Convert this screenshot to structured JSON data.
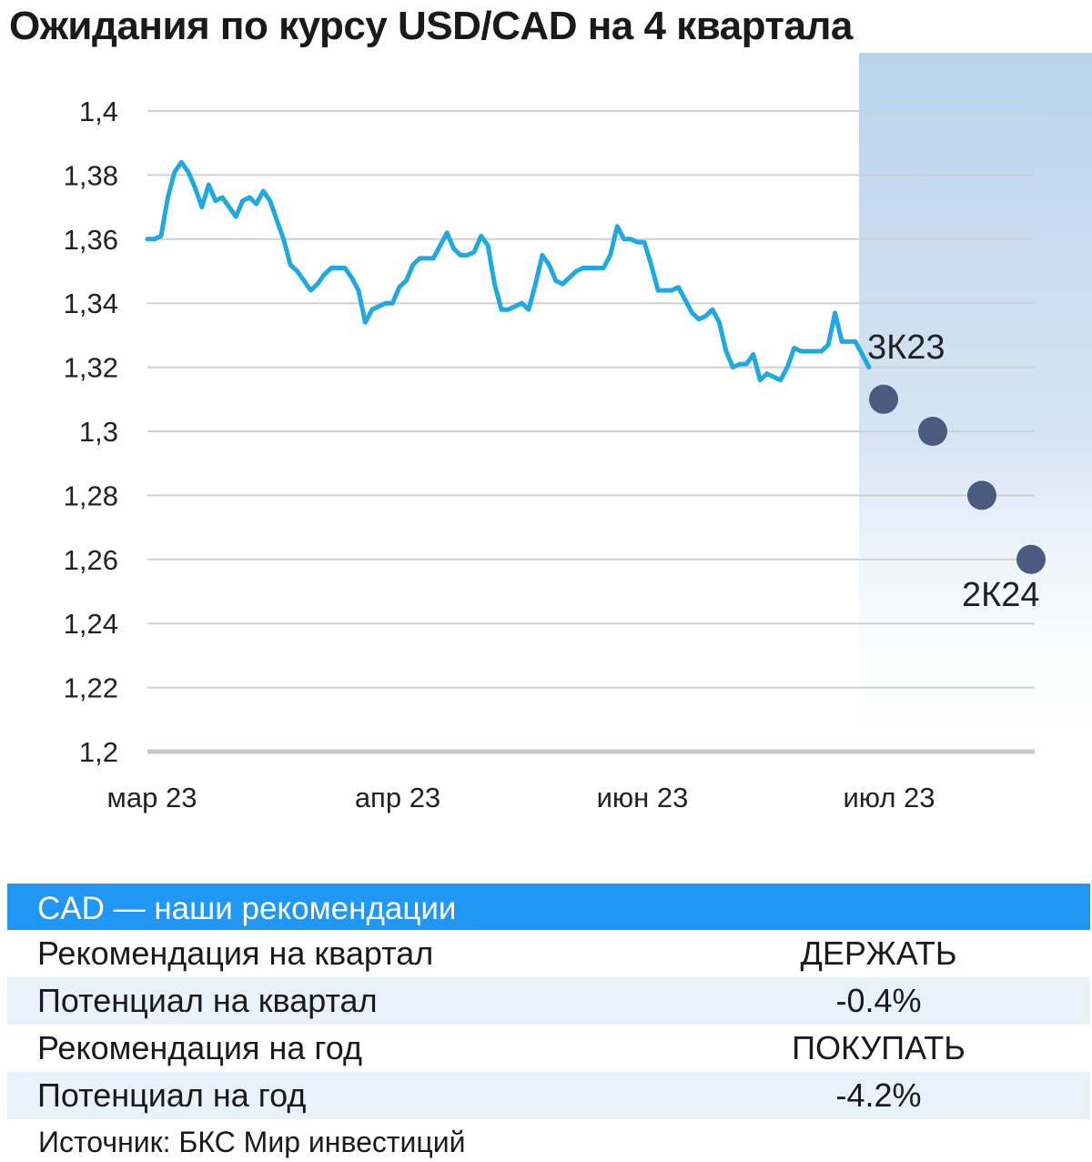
{
  "title": "Ожидания по курсу USD/CAD на 4 квартала",
  "chart_data": {
    "type": "line",
    "title": "Ожидания по курсу USD/CAD на 4 квартала",
    "ylim": [
      1.2,
      1.4
    ],
    "y_ticks": [
      "1,4",
      "1,38",
      "1,36",
      "1,34",
      "1,32",
      "1,3",
      "1,28",
      "1,26",
      "1,24",
      "1,22",
      "1,2"
    ],
    "y_tick_values": [
      1.4,
      1.38,
      1.36,
      1.34,
      1.32,
      1.3,
      1.28,
      1.26,
      1.24,
      1.22,
      1.2
    ],
    "x_ticks": [
      "мар 23",
      "апр 23",
      "июн 23",
      "июл 23"
    ],
    "grid": true,
    "colors": {
      "history": "#1fa9e1",
      "forecast": "#4a5b80",
      "forecast_band": "#b9d3ec",
      "grid": "#d0d0d0"
    },
    "history": [
      1.36,
      1.36,
      1.361,
      1.373,
      1.381,
      1.384,
      1.381,
      1.376,
      1.37,
      1.377,
      1.372,
      1.373,
      1.37,
      1.367,
      1.372,
      1.373,
      1.371,
      1.375,
      1.372,
      1.366,
      1.36,
      1.352,
      1.35,
      1.347,
      1.344,
      1.346,
      1.349,
      1.351,
      1.351,
      1.351,
      1.348,
      1.344,
      1.334,
      1.338,
      1.339,
      1.34,
      1.34,
      1.345,
      1.347,
      1.352,
      1.354,
      1.354,
      1.354,
      1.358,
      1.362,
      1.357,
      1.355,
      1.355,
      1.356,
      1.361,
      1.358,
      1.346,
      1.338,
      1.338,
      1.339,
      1.34,
      1.338,
      1.346,
      1.355,
      1.352,
      1.347,
      1.346,
      1.348,
      1.35,
      1.351,
      1.351,
      1.351,
      1.351,
      1.355,
      1.364,
      1.36,
      1.36,
      1.359,
      1.359,
      1.352,
      1.344,
      1.344,
      1.344,
      1.345,
      1.341,
      1.337,
      1.335,
      1.336,
      1.338,
      1.334,
      1.325,
      1.32,
      1.321,
      1.321,
      1.324,
      1.316,
      1.318,
      1.317,
      1.316,
      1.32,
      1.326,
      1.325,
      1.325,
      1.325,
      1.325,
      1.327,
      1.337,
      1.328,
      1.328,
      1.328,
      1.324,
      1.32
    ],
    "series": [
      {
        "values": [
          1.31,
          1.3,
          1.28,
          1.26
        ]
      }
    ],
    "annotations": [
      "3К23",
      "2К24"
    ]
  },
  "recommendations": {
    "header": "CAD — наши рекомендации",
    "rows": [
      {
        "label": "Рекомендация на квартал",
        "value": "ДЕРЖАТЬ"
      },
      {
        "label": "Потенциал на квартал",
        "value": "-0.4%"
      },
      {
        "label": "Рекомендация на год",
        "value": "ПОКУПАТЬ"
      },
      {
        "label": "Потенциал на год",
        "value": "-4.2%"
      }
    ]
  },
  "source": "Источник: БКС Мир инвестиций"
}
